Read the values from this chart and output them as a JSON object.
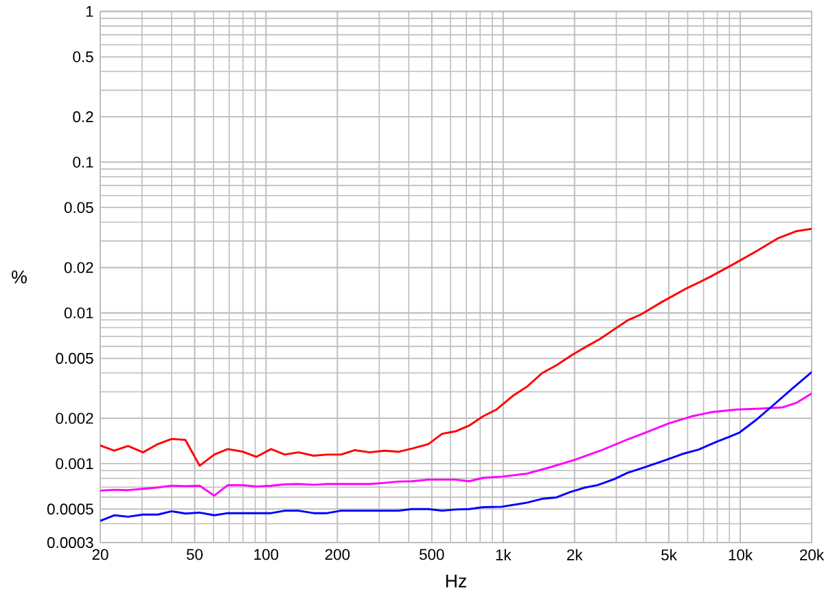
{
  "chart_data": {
    "type": "line",
    "xlabel": "Hz",
    "ylabel": "%",
    "log": "xy",
    "grid": true,
    "xlim": [
      20,
      20000
    ],
    "ylim": [
      0.0003,
      1
    ],
    "xticks": [
      20,
      50,
      100,
      200,
      500,
      {
        "value": 1000,
        "label": "1k"
      },
      {
        "value": 2000,
        "label": "2k"
      },
      {
        "value": 5000,
        "label": "5k"
      },
      {
        "value": 10000,
        "label": "10k"
      },
      {
        "value": 20000,
        "label": "20k"
      }
    ],
    "yticks": [
      1,
      0.5,
      0.2,
      0.1,
      0.05,
      0.02,
      0.01,
      0.005,
      0.002,
      0.001,
      0.0005,
      0.0003
    ],
    "series": [
      {
        "color": "#ff0000",
        "x": [
          20,
          22.9,
          26.2,
          30.3,
          35,
          40,
          45.7,
          52.5,
          60.5,
          69,
          80,
          91,
          105,
          120,
          137,
          159,
          181,
          207,
          237,
          274,
          316,
          362,
          413,
          484,
          553,
          630,
          719,
          822,
          938,
          1100,
          1260,
          1460,
          1680,
          1960,
          2250,
          2570,
          2930,
          3350,
          3820,
          4660,
          5960,
          7440,
          9280,
          11600,
          14500,
          17300,
          20000
        ],
        "values": [
          0.00132,
          0.00122,
          0.00131,
          0.00119,
          0.00135,
          0.00146,
          0.00144,
          0.00097,
          0.00115,
          0.00125,
          0.0012,
          0.00111,
          0.00125,
          0.00115,
          0.00119,
          0.00113,
          0.00115,
          0.00115,
          0.00123,
          0.00119,
          0.00122,
          0.0012,
          0.00126,
          0.00135,
          0.00158,
          0.00164,
          0.00179,
          0.00206,
          0.00229,
          0.00282,
          0.00324,
          0.00399,
          0.0045,
          0.00528,
          0.006,
          0.00674,
          0.00776,
          0.00893,
          0.00978,
          0.0118,
          0.0146,
          0.0173,
          0.0209,
          0.0255,
          0.0314,
          0.0349,
          0.0361
        ]
      },
      {
        "color": "#ff00ff",
        "x": [
          20,
          22.9,
          26.2,
          30.3,
          35,
          40,
          45.7,
          52.5,
          60.5,
          69,
          80,
          91,
          105,
          120,
          137,
          159,
          181,
          237,
          274,
          316,
          362,
          413,
          484,
          630,
          719,
          822,
          1000,
          1260,
          1600,
          2000,
          2570,
          3350,
          3990,
          4980,
          6220,
          7600,
          9720,
          12100,
          15000,
          17300,
          20000
        ],
        "values": [
          0.000663,
          0.000672,
          0.000668,
          0.000682,
          0.000696,
          0.000715,
          0.00071,
          0.000715,
          0.000614,
          0.000721,
          0.00072,
          0.000706,
          0.000715,
          0.00073,
          0.000733,
          0.000725,
          0.000733,
          0.000733,
          0.000733,
          0.000746,
          0.000762,
          0.000765,
          0.000784,
          0.000784,
          0.000765,
          0.000806,
          0.000822,
          0.000859,
          0.000953,
          0.00106,
          0.00122,
          0.00145,
          0.00161,
          0.00185,
          0.00206,
          0.0022,
          0.00229,
          0.00232,
          0.00236,
          0.00254,
          0.00292
        ]
      },
      {
        "color": "#0000ff",
        "x": [
          20,
          22.9,
          26.2,
          30.3,
          35,
          40,
          45.7,
          52.5,
          60.5,
          69,
          91,
          105,
          120,
          137,
          159,
          181,
          207,
          274,
          362,
          413,
          484,
          553,
          630,
          719,
          822,
          985,
          1260,
          1460,
          1680,
          1920,
          2190,
          2500,
          2930,
          3350,
          3990,
          4870,
          5700,
          6670,
          7960,
          8900,
          9930,
          11600,
          13800,
          16500,
          20000
        ],
        "values": [
          0.000418,
          0.000455,
          0.000445,
          0.00046,
          0.00046,
          0.000484,
          0.000467,
          0.000474,
          0.000455,
          0.00047,
          0.00047,
          0.00047,
          0.000488,
          0.000488,
          0.00047,
          0.00047,
          0.000488,
          0.000488,
          0.000488,
          0.0005,
          0.0005,
          0.000488,
          0.000497,
          0.0005,
          0.000515,
          0.000518,
          0.000552,
          0.000585,
          0.000598,
          0.000649,
          0.000692,
          0.000721,
          0.000789,
          0.000871,
          0.000953,
          0.00106,
          0.00116,
          0.00124,
          0.0014,
          0.0015,
          0.00161,
          0.00194,
          0.00245,
          0.00313,
          0.00405
        ]
      }
    ]
  }
}
